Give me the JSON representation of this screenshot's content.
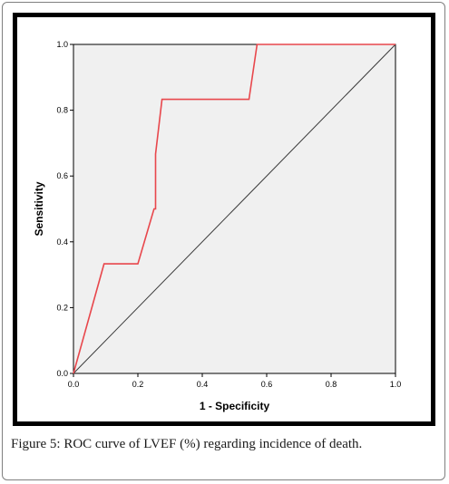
{
  "caption": {
    "label": "Figure 5:",
    "text": "ROC curve of LVEF (%) regarding incidence of death."
  },
  "colors": {
    "plot_background": "#f0f0f0",
    "roc_curve": "#e8474c",
    "reference_line": "#3a3a3a"
  },
  "chart_data": {
    "type": "line",
    "title": "",
    "xlabel": "1 - Specificity",
    "ylabel": "Sensitivity",
    "xlim": [
      0,
      1
    ],
    "ylim": [
      0,
      1
    ],
    "x_ticks": [
      "0.0",
      "0.2",
      "0.4",
      "0.6",
      "0.8",
      "1.0"
    ],
    "y_ticks": [
      "0.0",
      "0.2",
      "0.4",
      "0.6",
      "0.8",
      "1.0"
    ],
    "grid": false,
    "legend": "none",
    "series": [
      {
        "x": [
          0.0,
          0.095,
          0.2,
          0.25,
          0.255,
          0.255,
          0.275,
          0.545,
          0.57,
          1.0
        ],
        "y": [
          0.0,
          0.333,
          0.333,
          0.5,
          0.5,
          0.667,
          0.833,
          0.833,
          1.0,
          1.0
        ]
      },
      {
        "x": [
          0.0,
          1.0
        ],
        "y": [
          0.0,
          1.0
        ]
      }
    ]
  }
}
